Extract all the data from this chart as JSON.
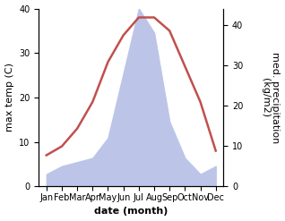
{
  "months": [
    "Jan",
    "Feb",
    "Mar",
    "Apr",
    "May",
    "Jun",
    "Jul",
    "Aug",
    "Sep",
    "Oct",
    "Nov",
    "Dec"
  ],
  "month_indices": [
    0,
    1,
    2,
    3,
    4,
    5,
    6,
    7,
    8,
    9,
    10,
    11
  ],
  "temperature": [
    7,
    9,
    13,
    19,
    28,
    34,
    38,
    38,
    35,
    27,
    19,
    8
  ],
  "precipitation": [
    3,
    5,
    6,
    7,
    12,
    28,
    44,
    38,
    16,
    7,
    3,
    5
  ],
  "temp_color": "#c0504d",
  "precip_fill_color": "#bcc5e8",
  "title": "",
  "xlabel": "date (month)",
  "ylabel_left": "max temp (C)",
  "ylabel_right": "med. precipitation\n(kg/m2)",
  "ylim_left": [
    0,
    40
  ],
  "ylim_right": [
    0,
    40
  ],
  "precip_scale": 10.909,
  "yticks_left": [
    0,
    10,
    20,
    30,
    40
  ],
  "ytick_labels_right": [
    "0",
    "10",
    "20",
    "30",
    "40"
  ],
  "background_color": "#ffffff",
  "line_width": 1.8,
  "xlabel_fontsize": 8,
  "ylabel_fontsize": 8,
  "tick_fontsize": 7
}
